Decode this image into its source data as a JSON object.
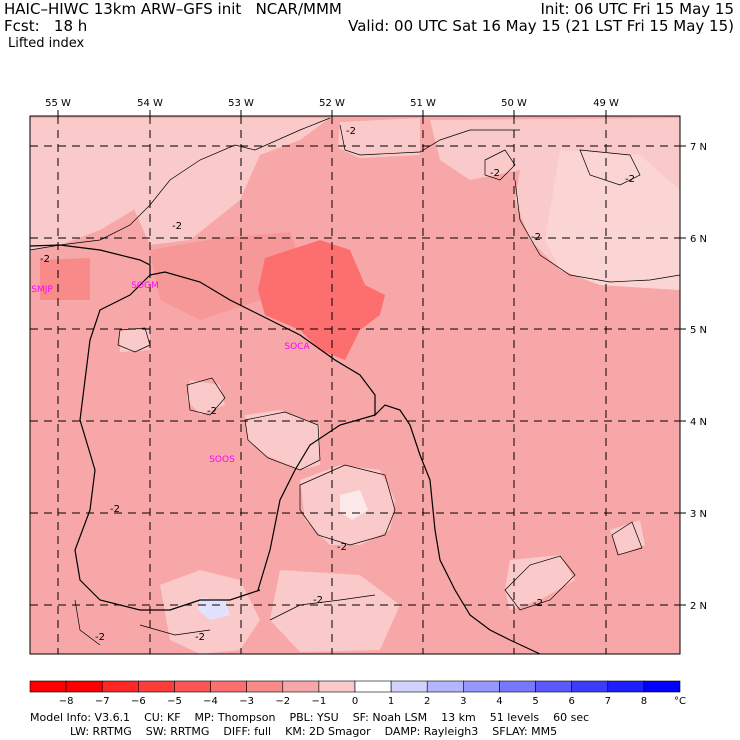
{
  "header": {
    "line1_left": "HAIC–HIWC 13km ARW–GFS init   NCAR/MMM",
    "line1_right": "Init: 06 UTC Fri 15 May 15",
    "line2_left": "Fcst:   18 h",
    "line2_right": "Valid: 00 UTC Sat 16 May 15 (21 LST Fri 15 May 15)",
    "field": "Lifted index"
  },
  "map": {
    "lon_labels": [
      "55 W",
      "54 W",
      "53 W",
      "52 W",
      "51 W",
      "50 W",
      "49 W"
    ],
    "lat_labels": [
      "7 N",
      "6 N",
      "5 N",
      "4 N",
      "3 N",
      "2 N"
    ],
    "stations": [
      "SMJP",
      "SOGM",
      "SOCA",
      "SOOS"
    ],
    "contour_label": "-2"
  },
  "colorbar": {
    "ticks": [
      "−8",
      "−7",
      "−6",
      "−5",
      "−4",
      "−3",
      "−2",
      "−1",
      "0",
      "1",
      "2",
      "3",
      "4",
      "5",
      "6",
      "7",
      "8"
    ],
    "unit": "°C",
    "colors": [
      "#ff0000",
      "#ff2626",
      "#ff3c3c",
      "#ff5454",
      "#fd6e6e",
      "#f88a8a",
      "#f7a7a7",
      "#fac9c9",
      "#ffffff",
      "#d2d2ff",
      "#b4b4ff",
      "#9696ff",
      "#7878ff",
      "#5a5aff",
      "#3c3cff",
      "#1e1eff",
      "#0000ff"
    ]
  },
  "footer": {
    "line1": [
      {
        "label": "Model Info: V3.6.1"
      },
      {
        "label": "CU: KF"
      },
      {
        "label": "MP: Thompson"
      },
      {
        "label": "PBL: YSU"
      },
      {
        "label": "SF: Noah LSM"
      },
      {
        "label": "13 km"
      },
      {
        "label": "51 levels"
      },
      {
        "label": "60 sec"
      }
    ],
    "line2": [
      {
        "label": "LW: RRTMG"
      },
      {
        "label": "SW: RRTMG"
      },
      {
        "label": "DIFF: full"
      },
      {
        "label": "KM: 2D Smagor"
      },
      {
        "label": "DAMP: Rayleigh3"
      },
      {
        "label": "SFLAY: MM5"
      }
    ]
  }
}
